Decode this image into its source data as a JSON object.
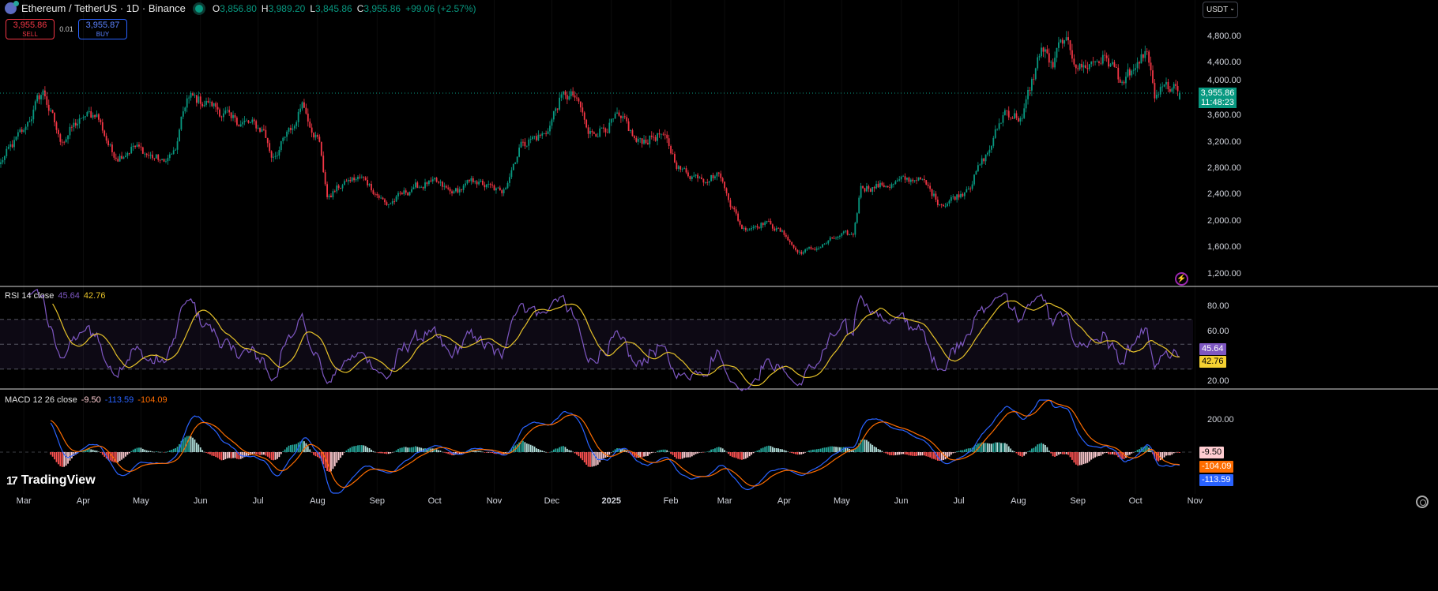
{
  "header": {
    "symbol": "Ethereum / TetherUS · 1D · Binance",
    "o_label": "O",
    "open": "3,856.80",
    "h_label": "H",
    "high": "3,989.20",
    "l_label": "L",
    "low": "3,845.86",
    "c_label": "C",
    "close": "3,955.86",
    "change": "+99.06 (+2.57%)"
  },
  "trade": {
    "sell_price": "3,955.86",
    "sell_label": "SELL",
    "qty": "0.01",
    "buy_price": "3,955.87",
    "buy_label": "BUY"
  },
  "currency": "USDT",
  "price_tag": {
    "price": "3,955.86",
    "countdown": "11:48:23"
  },
  "rsi_legend": {
    "name": "RSI 14 close",
    "rsi": "45.64",
    "ma": "42.76"
  },
  "macd_legend": {
    "name": "MACD 12 26 close",
    "hist": "-9.50",
    "macd": "-113.59",
    "signal": "-104.09"
  },
  "brand": "TradingView",
  "colors": {
    "up": "#089981",
    "down": "#f23645",
    "rsi": "#7e57c2",
    "rsi_ma": "#e6c229",
    "macd": "#2962ff",
    "signal": "#ff6d00"
  },
  "chart_data": {
    "type": "candlestick",
    "title": "Ethereum / TetherUS · 1D · Binance",
    "start_date": "2024-02-18",
    "ylim": [
      1000,
      5050
    ],
    "price_ticks": [
      "4,800.00",
      "4,400.00",
      "4,000.00",
      "3,600.00",
      "3,200.00",
      "2,800.00",
      "2,400.00",
      "2,000.00",
      "1,600.00",
      "1,200.00"
    ],
    "price_tick_values": [
      4800,
      4400,
      4000,
      3600,
      3200,
      2800,
      2400,
      2000,
      1600,
      1200
    ],
    "rsi_ticks": [
      "80.00",
      "60.00",
      "20.00"
    ],
    "rsi_tick_values": [
      80,
      60,
      20
    ],
    "macd_ticks": [
      "200.00"
    ],
    "macd_tick_values": [
      200
    ],
    "x_ticks": [
      [
        "Mar",
        "2024-03-01"
      ],
      [
        "Apr",
        "2024-04-01"
      ],
      [
        "May",
        "2024-05-01"
      ],
      [
        "Jun",
        "2024-06-01"
      ],
      [
        "Jul",
        "2024-07-01"
      ],
      [
        "Aug",
        "2024-08-01"
      ],
      [
        "Sep",
        "2024-09-01"
      ],
      [
        "Oct",
        "2024-10-01"
      ],
      [
        "Nov",
        "2024-11-01"
      ],
      [
        "Dec",
        "2024-12-01"
      ],
      [
        "2025",
        "2025-01-01"
      ],
      [
        "Feb",
        "2025-02-01"
      ],
      [
        "Mar",
        "2025-03-01"
      ],
      [
        "Apr",
        "2025-04-01"
      ],
      [
        "May",
        "2025-05-01"
      ],
      [
        "Jun",
        "2025-06-01"
      ],
      [
        "Jul",
        "2025-07-01"
      ],
      [
        "Aug",
        "2025-08-01"
      ],
      [
        "Sep",
        "2025-09-01"
      ],
      [
        "Oct",
        "2025-10-01"
      ],
      [
        "Nov",
        "2025-11-01"
      ]
    ],
    "close_keypoints": [
      [
        "2024-02-18",
        2900
      ],
      [
        "2024-03-01",
        3390
      ],
      [
        "2024-03-11",
        3990
      ],
      [
        "2024-03-20",
        3210
      ],
      [
        "2024-03-31",
        3570
      ],
      [
        "2024-04-08",
        3630
      ],
      [
        "2024-04-17",
        2970
      ],
      [
        "2024-04-27",
        3150
      ],
      [
        "2024-05-03",
        3030
      ],
      [
        "2024-05-13",
        2910
      ],
      [
        "2024-05-19",
        3090
      ],
      [
        "2024-05-25",
        3870
      ],
      [
        "2024-06-05",
        3810
      ],
      [
        "2024-06-17",
        3570
      ],
      [
        "2024-07-04",
        3390
      ],
      [
        "2024-07-08",
        2970
      ],
      [
        "2024-07-20",
        3450
      ],
      [
        "2024-07-24",
        3810
      ],
      [
        "2024-08-02",
        3210
      ],
      [
        "2024-08-06",
        2370
      ],
      [
        "2024-08-16",
        2610
      ],
      [
        "2024-08-25",
        2670
      ],
      [
        "2024-09-06",
        2250
      ],
      [
        "2024-09-19",
        2490
      ],
      [
        "2024-09-29",
        2610
      ],
      [
        "2024-10-10",
        2430
      ],
      [
        "2024-10-22",
        2610
      ],
      [
        "2024-11-05",
        2430
      ],
      [
        "2024-11-15",
        3210
      ],
      [
        "2024-11-28",
        3330
      ],
      [
        "2024-12-06",
        3930
      ],
      [
        "2024-12-14",
        3870
      ],
      [
        "2024-12-20",
        3330
      ],
      [
        "2025-01-06",
        3570
      ],
      [
        "2025-01-14",
        3210
      ],
      [
        "2025-01-27",
        3330
      ],
      [
        "2025-02-06",
        2790
      ],
      [
        "2025-02-16",
        2670
      ],
      [
        "2025-02-26",
        2730
      ],
      [
        "2025-03-02",
        2430
      ],
      [
        "2025-03-10",
        1890
      ],
      [
        "2025-03-23",
        2010
      ],
      [
        "2025-04-02",
        1770
      ],
      [
        "2025-04-08",
        1530
      ],
      [
        "2025-04-18",
        1590
      ],
      [
        "2025-04-29",
        1770
      ],
      [
        "2025-05-07",
        1800
      ],
      [
        "2025-05-11",
        2540
      ],
      [
        "2025-05-24",
        2540
      ],
      [
        "2025-06-10",
        2670
      ],
      [
        "2025-06-22",
        2250
      ],
      [
        "2025-07-05",
        2490
      ],
      [
        "2025-07-17",
        3090
      ],
      [
        "2025-07-25",
        3690
      ],
      [
        "2025-08-03",
        3570
      ],
      [
        "2025-08-13",
        4640
      ],
      [
        "2025-08-19",
        4340
      ],
      [
        "2025-08-23",
        4760
      ],
      [
        "2025-09-03",
        4340
      ],
      [
        "2025-09-15",
        4520
      ],
      [
        "2025-09-25",
        4100
      ],
      [
        "2025-10-03",
        4400
      ],
      [
        "2025-10-07",
        4580
      ],
      [
        "2025-10-11",
        3870
      ],
      [
        "2025-10-15",
        4050
      ],
      [
        "2025-10-24",
        3955.86
      ]
    ],
    "last_candle": {
      "open": 3856.8,
      "high": 3989.2,
      "low": 3845.86,
      "close": 3955.86
    },
    "rsi": {
      "period": 14,
      "last": 45.64,
      "ma_last": 42.76,
      "bands": [
        70,
        50,
        30
      ]
    },
    "macd": {
      "fast": 12,
      "slow": 26,
      "signal": 9,
      "hist_last": -9.5,
      "macd_last": -113.59,
      "signal_last": -104.09
    }
  }
}
